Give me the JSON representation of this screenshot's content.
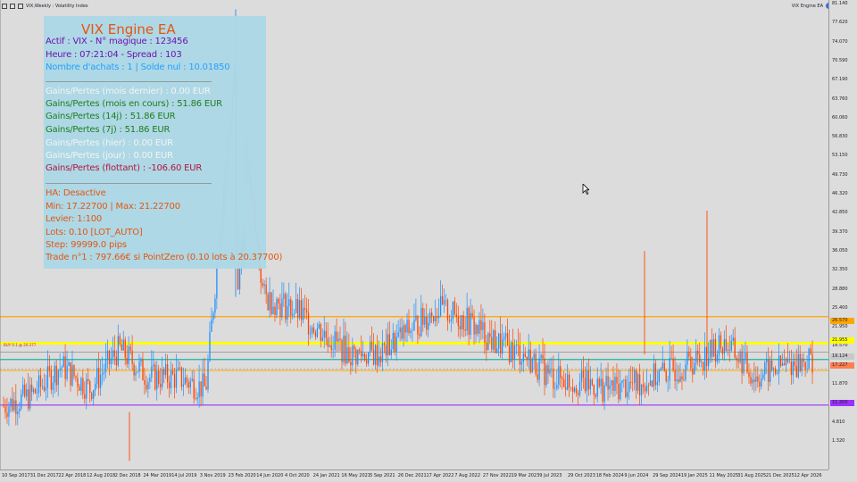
{
  "window": {
    "title": "VIX,Weekly : Volatility Index",
    "ea_name": "VIX Engine EA"
  },
  "colors": {
    "background": "#dcdcdc",
    "bull_candle": "#1e90ff",
    "bear_candle": "#ff4500",
    "level_orange": "#ffa500",
    "level_yellow": "#ffff00",
    "level_teal": "#20b2aa",
    "level_purple": "#9b30ff",
    "level_grey": "#808080",
    "panel_bg": "#add8e6"
  },
  "info_panel": {
    "title": "VIX Engine EA",
    "lines": [
      {
        "text": "Actif : VIX  -  N° magique : 123456",
        "color": "#6a0dad"
      },
      {
        "text": "Heure : 07:21:04  -  Spread : 103",
        "color": "#6a0dad"
      },
      {
        "text": "Nombre d'achats : 1  |  Solde nul : 10.01850",
        "color": "#1e9fff"
      },
      {
        "text": "Gains/Pertes (mois dernier) : 0.00 EUR",
        "color": "#f5f5f5"
      },
      {
        "text": "Gains/Pertes (mois en cours) : 51.86 EUR",
        "color": "#1a7a1a"
      },
      {
        "text": "Gains/Pertes (14j) : 51.86 EUR",
        "color": "#1a7a1a"
      },
      {
        "text": "Gains/Pertes (7j) : 51.86 EUR",
        "color": "#1a7a1a"
      },
      {
        "text": "Gains/Pertes (hier) : 0.00 EUR",
        "color": "#f5f5f5"
      },
      {
        "text": "Gains/Pertes (jour) : 0.00 EUR",
        "color": "#f5f5f5"
      },
      {
        "text": "Gains/Pertes (flottant) : -106.60 EUR",
        "color": "#b0103a"
      },
      {
        "text": "HA: Desactive",
        "color": "#e8500a"
      },
      {
        "text": "Min: 17.22700 | Max: 21.22700",
        "color": "#e8500a"
      },
      {
        "text": "Levier: 1:100",
        "color": "#e8500a"
      },
      {
        "text": "Lots: 0.10 [LOT_AUTO]",
        "color": "#e8500a"
      },
      {
        "text": "Step: 99999.0 pips",
        "color": "#e8500a"
      },
      {
        "text": "Trade n°1 : 797.66€ si PointZero (0.10 lots à 20.37700)",
        "color": "#e8500a"
      }
    ]
  },
  "price_scale": {
    "ticks": [
      "81.140",
      "77.620",
      "74.070",
      "70.590",
      "67.190",
      "63.760",
      "60.060",
      "56.830",
      "53.150",
      "49.730",
      "46.320",
      "42.850",
      "39.370",
      "36.050",
      "32.350",
      "28.880",
      "25.400",
      "21.950",
      "18.570",
      "15.140",
      "11.870",
      "8.290",
      "4.810",
      "1.320"
    ],
    "tags": [
      {
        "label": "26.570",
        "color": "#ffa500"
      },
      {
        "label": "21.955",
        "color": "#ffff00"
      },
      {
        "label": "19.124",
        "color": "#c8c8c8"
      },
      {
        "label": "17.227",
        "color": "#ff7f50"
      },
      {
        "label": "11.200",
        "color": "#9b30ff"
      }
    ]
  },
  "time_scale": {
    "ticks": [
      "10 Sep 2017",
      "31 Dec 2017",
      "22 Apr 2018",
      "12 Aug 2018",
      "2 Dec 2018",
      "24 Mar 2019",
      "14 Jul 2019",
      "3 Nov 2019",
      "23 Feb 2020",
      "14 Jun 2020",
      "4 Oct 2020",
      "24 Jan 2021",
      "16 May 2021",
      "5 Sep 2021",
      "26 Dec 2021",
      "17 Apr 2022",
      "7 Aug 2022",
      "27 Nov 2022",
      "19 Mar 2023",
      "9 Jul 2023",
      "29 Oct 2023",
      "18 Feb 2024",
      "9 Jun 2024",
      "29 Sep 2024",
      "19 Jan 2025",
      "11 May 2025",
      "31 Aug 2025",
      "21 Dec 2025",
      "12 Apr 2026"
    ]
  },
  "levels": {
    "line_label": "BUY 0.1 @ 20.377"
  },
  "chart_data": {
    "type": "line",
    "symbol": "VIX",
    "timeframe": "Weekly",
    "title": "VIX,Weekly : Volatility Index",
    "ylim": [
      0,
      81.14
    ],
    "levels": [
      26.57,
      21.955,
      20.377,
      19.124,
      17.227,
      11.2
    ],
    "x": [
      "2017-09-10",
      "2017-12-31",
      "2018-04-22",
      "2018-08-12",
      "2018-12-02",
      "2019-03-24",
      "2019-07-14",
      "2019-11-03",
      "2020-02-23",
      "2020-06-14",
      "2020-10-04",
      "2021-01-24",
      "2021-05-16",
      "2021-09-05",
      "2021-12-26",
      "2022-04-17",
      "2022-08-07",
      "2022-11-27",
      "2023-03-19",
      "2023-07-09",
      "2023-10-29",
      "2024-02-18",
      "2024-06-09",
      "2024-09-29",
      "2025-01-19",
      "2025-05-11",
      "2025-08-31",
      "2025-12-21",
      "2026-04-12"
    ],
    "series": [
      {
        "values": [
          11,
          13,
          18,
          14,
          21,
          16,
          16,
          14,
          70,
          30,
          28,
          24,
          20,
          20,
          24,
          28,
          26,
          22,
          20,
          16,
          15,
          14,
          15,
          17,
          19,
          22,
          16,
          18,
          19
        ]
      }
    ]
  }
}
